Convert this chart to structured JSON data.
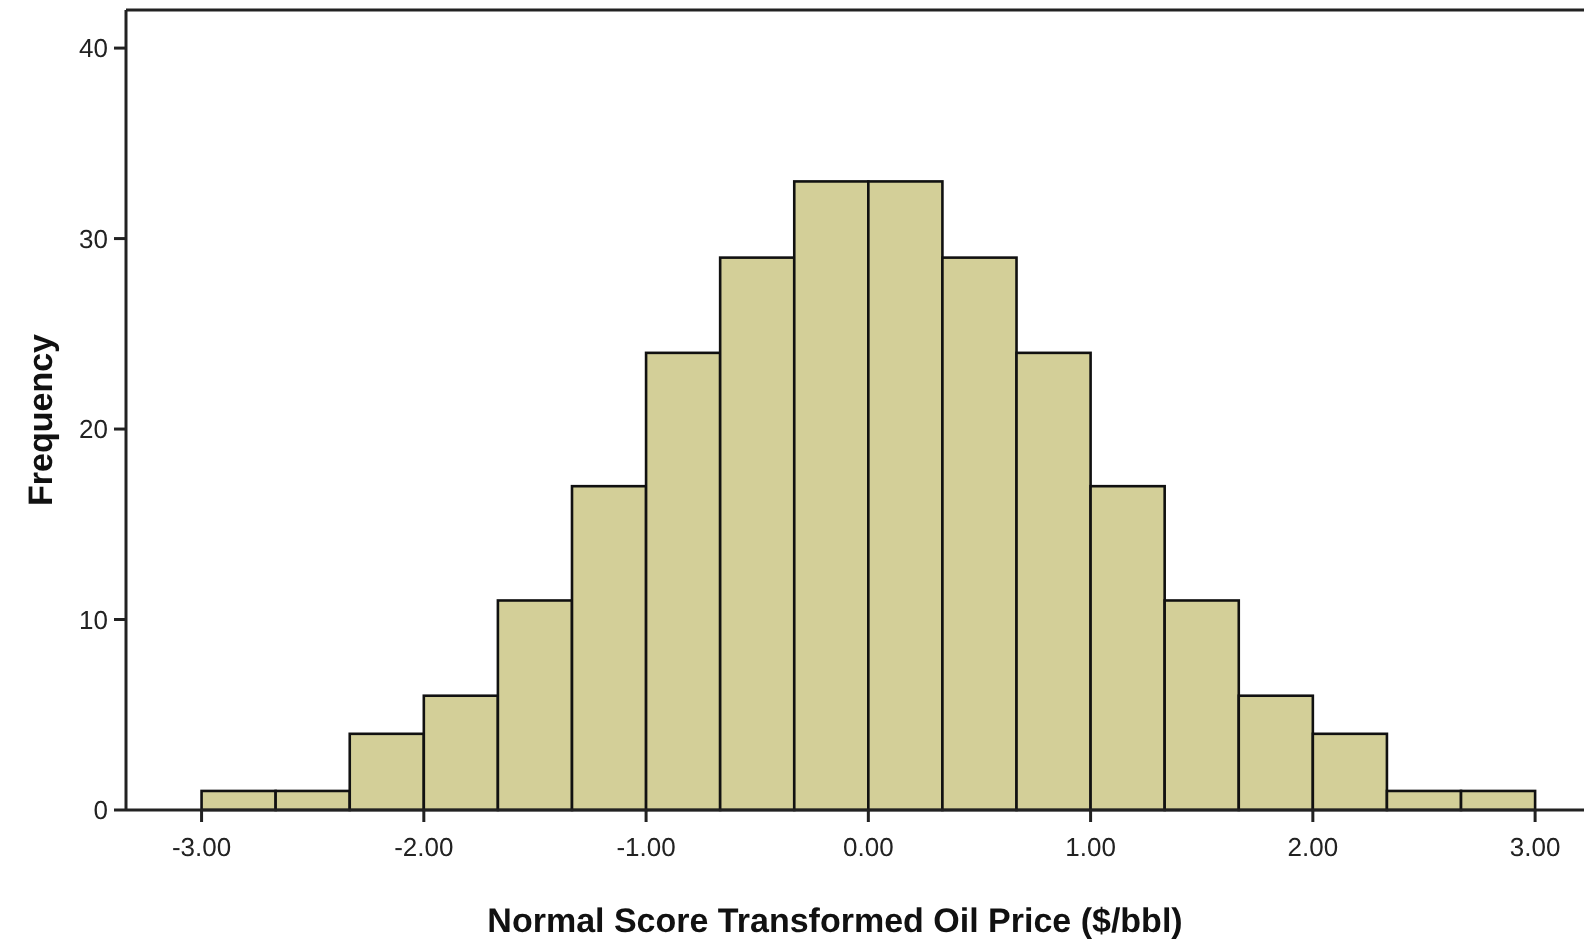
{
  "chart_data": {
    "type": "histogram",
    "xlabel": "Normal Score Transformed Oil Price ($/bbl)",
    "ylabel": "Frequency",
    "color": "#d3cf98",
    "bins": [
      -3,
      -2.6667,
      -2.3333,
      -2,
      -1.6667,
      -1.3333,
      -1,
      -0.6667,
      -0.3333,
      0,
      0.3333,
      0.6667,
      1,
      1.3333,
      1.6667,
      2,
      2.3333,
      2.6667,
      3
    ],
    "values": [
      1,
      1,
      4,
      6,
      11,
      17,
      24,
      29,
      33,
      33,
      29,
      24,
      17,
      11,
      6,
      4,
      1,
      1
    ],
    "xlim": [
      -3.34,
      3.22
    ],
    "ylim": [
      0,
      42
    ],
    "xticks": [
      {
        "value": -3,
        "label": "-3.00"
      },
      {
        "value": -2,
        "label": "-2.00"
      },
      {
        "value": -1,
        "label": "-1.00"
      },
      {
        "value": 0,
        "label": "0.00"
      },
      {
        "value": 1,
        "label": "1.00"
      },
      {
        "value": 2,
        "label": "2.00"
      },
      {
        "value": 3,
        "label": "3.00"
      }
    ],
    "yticks": [
      0,
      10,
      20,
      30,
      40
    ],
    "grid": false
  }
}
